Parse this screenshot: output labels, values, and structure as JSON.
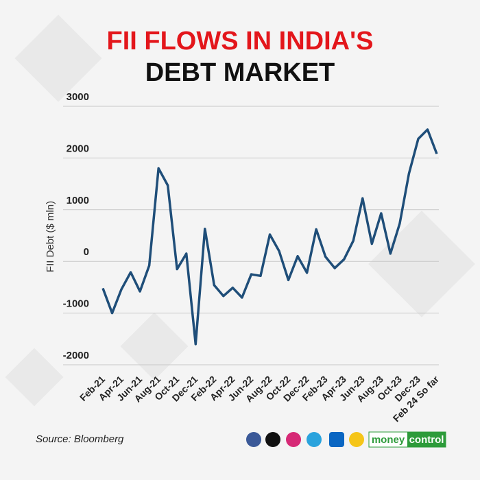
{
  "chart_data": {
    "type": "line",
    "title": [
      "FII FLOWS IN INDIA'S",
      "DEBT MARKET"
    ],
    "y_label": "FII Debt ($ mln)",
    "source": "Source: Bloomberg",
    "brand": [
      "money",
      "control"
    ],
    "categories": [
      "Feb-21",
      null,
      "Apr-21",
      null,
      "Jun-21",
      null,
      "Aug-21",
      null,
      "Oct-21",
      null,
      "Dec-21",
      null,
      "Feb-22",
      null,
      "Apr-22",
      null,
      "Jun-22",
      null,
      "Aug-22",
      null,
      "Oct-22",
      null,
      "Dec-22",
      null,
      "Feb-23",
      null,
      "Apr-23",
      null,
      "Jun-23",
      null,
      "Aug-23",
      null,
      "Oct-23",
      null,
      "Dec-23",
      null,
      "Feb 24 So far"
    ],
    "values": [
      -520,
      -1000,
      -540,
      -210,
      -580,
      -80,
      1800,
      1470,
      -150,
      150,
      -1600,
      630,
      -460,
      -670,
      -510,
      -700,
      -250,
      -280,
      520,
      200,
      -360,
      100,
      -220,
      620,
      90,
      -130,
      40,
      400,
      1220,
      340,
      930,
      150,
      730,
      1700,
      2370,
      2550,
      2080
    ],
    "color": "#1f4e79",
    "ylim": [
      -2000,
      3000
    ],
    "yticks": [
      -2000,
      -1000,
      0,
      1000,
      2000,
      3000
    ],
    "grid": true
  }
}
